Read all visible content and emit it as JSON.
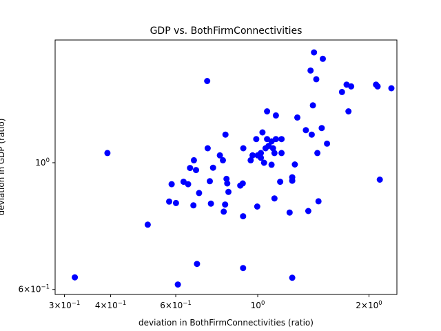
{
  "chart_data": {
    "type": "scatter",
    "title": "GDP vs. BothFirmConnectivities",
    "xlabel": "deviation in BothFirmConnectivities (ratio)",
    "ylabel": "deviation in GDP (ratio)",
    "xscale": "log",
    "yscale": "log",
    "xlim": [
      0.283,
      2.38
    ],
    "ylim": [
      0.588,
      1.64
    ],
    "grid": false,
    "marker_color": "#0000ff",
    "x_ticks": [
      {
        "value": 0.3,
        "base": "3",
        "exp": "−1"
      },
      {
        "value": 0.4,
        "base": "4",
        "exp": "−1"
      },
      {
        "value": 0.6,
        "base": "6",
        "exp": "−1"
      },
      {
        "value": 1.0,
        "base": "",
        "exp": "",
        "plain": "10"
      },
      {
        "value": 2.0,
        "base": "2",
        "exp": "0"
      }
    ],
    "y_ticks": [
      {
        "value": 0.6,
        "base": "6",
        "exp": "−1"
      },
      {
        "value": 1.0,
        "base": "",
        "exp": "",
        "plain": "10"
      }
    ],
    "points": [
      {
        "x": 0.32,
        "y": 0.63
      },
      {
        "x": 0.392,
        "y": 1.04
      },
      {
        "x": 0.504,
        "y": 0.779
      },
      {
        "x": 0.576,
        "y": 0.855
      },
      {
        "x": 0.585,
        "y": 0.917
      },
      {
        "x": 0.601,
        "y": 0.85
      },
      {
        "x": 0.608,
        "y": 0.612
      },
      {
        "x": 0.63,
        "y": 0.926
      },
      {
        "x": 0.648,
        "y": 0.917
      },
      {
        "x": 0.656,
        "y": 0.979
      },
      {
        "x": 0.67,
        "y": 0.842
      },
      {
        "x": 0.672,
        "y": 1.01
      },
      {
        "x": 0.681,
        "y": 0.971
      },
      {
        "x": 0.685,
        "y": 0.665
      },
      {
        "x": 0.694,
        "y": 0.885
      },
      {
        "x": 0.73,
        "y": 1.39
      },
      {
        "x": 0.732,
        "y": 1.06
      },
      {
        "x": 0.742,
        "y": 0.928
      },
      {
        "x": 0.747,
        "y": 0.848
      },
      {
        "x": 0.757,
        "y": 0.98
      },
      {
        "x": 0.79,
        "y": 1.03
      },
      {
        "x": 0.805,
        "y": 1.01
      },
      {
        "x": 0.809,
        "y": 0.821
      },
      {
        "x": 0.816,
        "y": 0.845
      },
      {
        "x": 0.818,
        "y": 1.12
      },
      {
        "x": 0.823,
        "y": 0.937
      },
      {
        "x": 0.827,
        "y": 0.92
      },
      {
        "x": 0.833,
        "y": 0.889
      },
      {
        "x": 0.897,
        "y": 0.912
      },
      {
        "x": 0.911,
        "y": 0.92
      },
      {
        "x": 0.913,
        "y": 0.806
      },
      {
        "x": 0.914,
        "y": 1.06
      },
      {
        "x": 0.913,
        "y": 0.654
      },
      {
        "x": 0.957,
        "y": 1.01
      },
      {
        "x": 0.968,
        "y": 1.03
      },
      {
        "x": 0.991,
        "y": 1.1
      },
      {
        "x": 0.997,
        "y": 0.838
      },
      {
        "x": 1.0,
        "y": 1.03
      },
      {
        "x": 1.02,
        "y": 1.02
      },
      {
        "x": 1.02,
        "y": 1.04
      },
      {
        "x": 1.03,
        "y": 1.13
      },
      {
        "x": 1.04,
        "y": 1.0
      },
      {
        "x": 1.05,
        "y": 1.06
      },
      {
        "x": 1.06,
        "y": 1.23
      },
      {
        "x": 1.06,
        "y": 1.1
      },
      {
        "x": 1.07,
        "y": 1.07
      },
      {
        "x": 1.09,
        "y": 1.09
      },
      {
        "x": 1.09,
        "y": 0.992
      },
      {
        "x": 1.1,
        "y": 1.06
      },
      {
        "x": 1.11,
        "y": 1.04
      },
      {
        "x": 1.11,
        "y": 0.866
      },
      {
        "x": 1.12,
        "y": 1.21
      },
      {
        "x": 1.12,
        "y": 1.1
      },
      {
        "x": 1.15,
        "y": 0.926
      },
      {
        "x": 1.16,
        "y": 1.1
      },
      {
        "x": 1.16,
        "y": 1.04
      },
      {
        "x": 1.22,
        "y": 0.818
      },
      {
        "x": 1.24,
        "y": 0.943
      },
      {
        "x": 1.24,
        "y": 0.93
      },
      {
        "x": 1.24,
        "y": 0.629
      },
      {
        "x": 1.26,
        "y": 0.993
      },
      {
        "x": 1.28,
        "y": 1.2
      },
      {
        "x": 1.35,
        "y": 1.14
      },
      {
        "x": 1.37,
        "y": 0.823
      },
      {
        "x": 1.39,
        "y": 1.45
      },
      {
        "x": 1.4,
        "y": 1.12
      },
      {
        "x": 1.41,
        "y": 1.26
      },
      {
        "x": 1.42,
        "y": 1.56
      },
      {
        "x": 1.44,
        "y": 1.4
      },
      {
        "x": 1.45,
        "y": 1.04
      },
      {
        "x": 1.46,
        "y": 0.856
      },
      {
        "x": 1.49,
        "y": 1.15
      },
      {
        "x": 1.5,
        "y": 1.52
      },
      {
        "x": 1.54,
        "y": 1.08
      },
      {
        "x": 1.69,
        "y": 1.33
      },
      {
        "x": 1.74,
        "y": 1.37
      },
      {
        "x": 1.76,
        "y": 1.23
      },
      {
        "x": 1.79,
        "y": 1.36
      },
      {
        "x": 2.09,
        "y": 1.37
      },
      {
        "x": 2.11,
        "y": 1.36
      },
      {
        "x": 2.14,
        "y": 0.934
      },
      {
        "x": 2.3,
        "y": 1.35
      }
    ]
  }
}
